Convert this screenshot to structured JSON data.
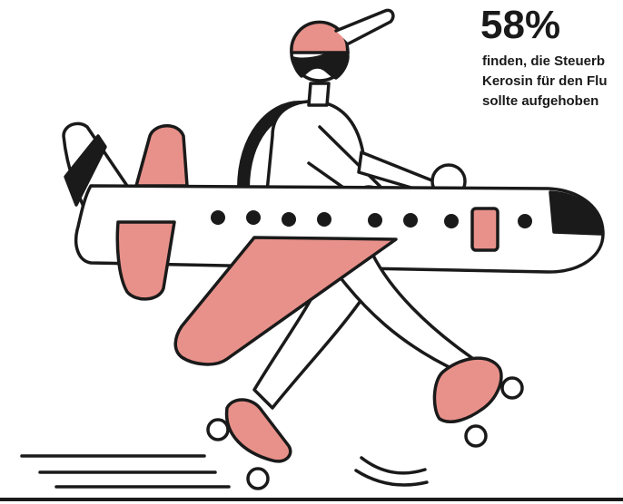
{
  "statistic": {
    "value": "58%",
    "lines": [
      "finden, die Steuerb",
      "Kerosin für den Flu",
      "sollte aufgehoben"
    ]
  },
  "illustration": {
    "subject": "person-on-roller-skates-carrying-airplane",
    "colors": {
      "accent": "#E8918A",
      "outline": "#1a1a1a",
      "background": "#ffffff"
    }
  }
}
